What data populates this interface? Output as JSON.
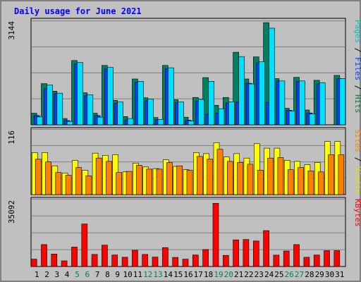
{
  "chart_data": {
    "type": "bar",
    "title": "Daily usage for June 2021",
    "categories": [
      "1",
      "2",
      "3",
      "4",
      "5",
      "6",
      "7",
      "8",
      "9",
      "10",
      "11",
      "12",
      "13",
      "14",
      "15",
      "16",
      "17",
      "18",
      "19",
      "20",
      "21",
      "22",
      "23",
      "24",
      "25",
      "26",
      "27",
      "28",
      "29",
      "30",
      "31"
    ],
    "weekend_days": [
      "5",
      "6",
      "12",
      "13",
      "19",
      "20",
      "26",
      "27"
    ],
    "panels": [
      {
        "name": "top",
        "max_label": "3144",
        "ylim": [
          0,
          3144
        ],
        "right_label": [
          {
            "text": "Pages",
            "color": "#00c0c0"
          },
          {
            "text": "Files",
            "color": "#0040ff"
          },
          {
            "text": "Hits",
            "color": "#008040"
          }
        ],
        "series": [
          {
            "name": "Hits",
            "color": "#008060",
            "values": [
              350,
              1250,
              1020,
              190,
              1950,
              970,
              350,
              1800,
              740,
              250,
              1390,
              820,
              220,
              1800,
              760,
              230,
              830,
              1430,
              590,
              830,
              2200,
              1390,
              2060,
              3100,
              1400,
              500,
              1440,
              450,
              1350,
              0,
              1500
            ]
          },
          {
            "name": "Files",
            "color": "#0040ff",
            "values": [
              280,
              1100,
              940,
              130,
              1850,
              880,
              280,
              1700,
              650,
              150,
              1290,
              730,
              150,
              1700,
              670,
              140,
              720,
              320,
              360,
              660,
              690,
              1260,
              1880,
              680,
              1330,
              440,
              1320,
              360,
              1240,
              0,
              1400
            ]
          },
          {
            "name": "Pages",
            "color": "#00e0ff",
            "values": [
              240,
              1210,
              960,
              100,
              1890,
              910,
              230,
              1740,
              690,
              190,
              1320,
              780,
              160,
              1730,
              690,
              120,
              770,
              1320,
              490,
              700,
              2070,
              1240,
              1910,
              2930,
              1330,
              420,
              1330,
              330,
              1280,
              0,
              1400
            ]
          }
        ]
      },
      {
        "name": "middle",
        "max_label": "116",
        "ylim": [
          0,
          116
        ],
        "right_label": [
          {
            "text": "Sites",
            "color": "#ff8000"
          },
          {
            "text": "Visits",
            "color": "#e0e000"
          }
        ],
        "series": [
          {
            "name": "Visits",
            "color": "#ffff00",
            "values": [
              76,
              76,
              52,
              39,
              62,
              44,
              75,
              71,
              72,
              41,
              57,
              50,
              47,
              63,
              51,
              45,
              76,
              74,
              94,
              68,
              74,
              66,
              92,
              84,
              84,
              62,
              60,
              54,
              58,
              96,
              96
            ]
          },
          {
            "name": "Sites",
            "color": "#ff8000",
            "values": [
              64,
              59,
              40,
              35,
              49,
              34,
              66,
              60,
              40,
              42,
              53,
              46,
              46,
              58,
              52,
              44,
              69,
              64,
              82,
              60,
              58,
              55,
              44,
              66,
              67,
              45,
              49,
              43,
              41,
              72,
              72
            ]
          }
        ]
      },
      {
        "name": "bottom",
        "max_label": "35092",
        "ylim": [
          0,
          35092
        ],
        "right_label": [
          {
            "text": "KBytes",
            "color": "#ff0000"
          }
        ],
        "series": [
          {
            "name": "KBytes",
            "color": "#ff0000",
            "values": [
              3900,
              11600,
              6600,
              3000,
              10300,
              22500,
              6400,
              11300,
              6100,
              4900,
              8600,
              6400,
              5000,
              10000,
              4800,
              3900,
              6100,
              9000,
              33500,
              5900,
              14100,
              14300,
              13500,
              19000,
              6000,
              8200,
              11600,
              4900,
              6100,
              8400,
              8400
            ]
          }
        ]
      }
    ]
  }
}
